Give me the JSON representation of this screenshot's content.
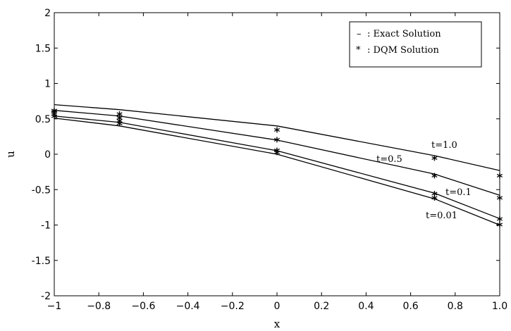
{
  "chart_data": {
    "type": "line",
    "title": "",
    "xlabel": "x",
    "ylabel": "u",
    "xlim": [
      -1,
      1
    ],
    "ylim": [
      -2,
      2
    ],
    "grid": false,
    "legend_position": "top-right",
    "xticks": [
      "−1",
      "−0.8",
      "−0.6",
      "−0.4",
      "−0.2",
      "0",
      "0.2",
      "0.4",
      "0.6",
      "0.8",
      "1.0"
    ],
    "yticks": [
      "2",
      "1.5",
      "1",
      "0.5",
      "0",
      "-0.5",
      "-1",
      "-1.5",
      "-2"
    ],
    "xtick_values": [
      -1,
      -0.8,
      -0.6,
      -0.4,
      -0.2,
      0,
      0.2,
      0.4,
      0.6,
      0.8,
      1.0
    ],
    "ytick_values": [
      2,
      1.5,
      1,
      0.5,
      0,
      -0.5,
      -1,
      -1.5,
      -2
    ],
    "legend": [
      {
        "symbol": "–",
        "label": ": Exact Solution"
      },
      {
        "symbol": "*",
        "label": ": DQM Solution"
      }
    ],
    "exact_x": [
      -1,
      -0.7071,
      0,
      0.7071,
      1
    ],
    "dqm_x": [
      -1,
      -0.7071,
      0,
      0.7071,
      1
    ],
    "series": [
      {
        "label": "t=1.0",
        "exact": [
          0.7,
          0.63,
          0.4,
          -0.02,
          -0.23
        ],
        "dqm": [
          0.6,
          0.55,
          0.33,
          -0.07,
          -0.32
        ]
      },
      {
        "label": "t=0.5",
        "exact": [
          0.62,
          0.54,
          0.2,
          -0.28,
          -0.58
        ],
        "dqm": [
          0.58,
          0.5,
          0.19,
          -0.32,
          -0.63
        ]
      },
      {
        "label": "t=0.1",
        "exact": [
          0.54,
          0.45,
          0.05,
          -0.55,
          -0.91
        ],
        "dqm": [
          0.55,
          0.46,
          0.04,
          -0.57,
          -0.93
        ]
      },
      {
        "label": "t=0.01",
        "exact": [
          0.51,
          0.4,
          0.0,
          -0.63,
          -1.0
        ],
        "dqm": [
          0.52,
          0.42,
          0.01,
          -0.63,
          -1.01
        ]
      }
    ]
  }
}
